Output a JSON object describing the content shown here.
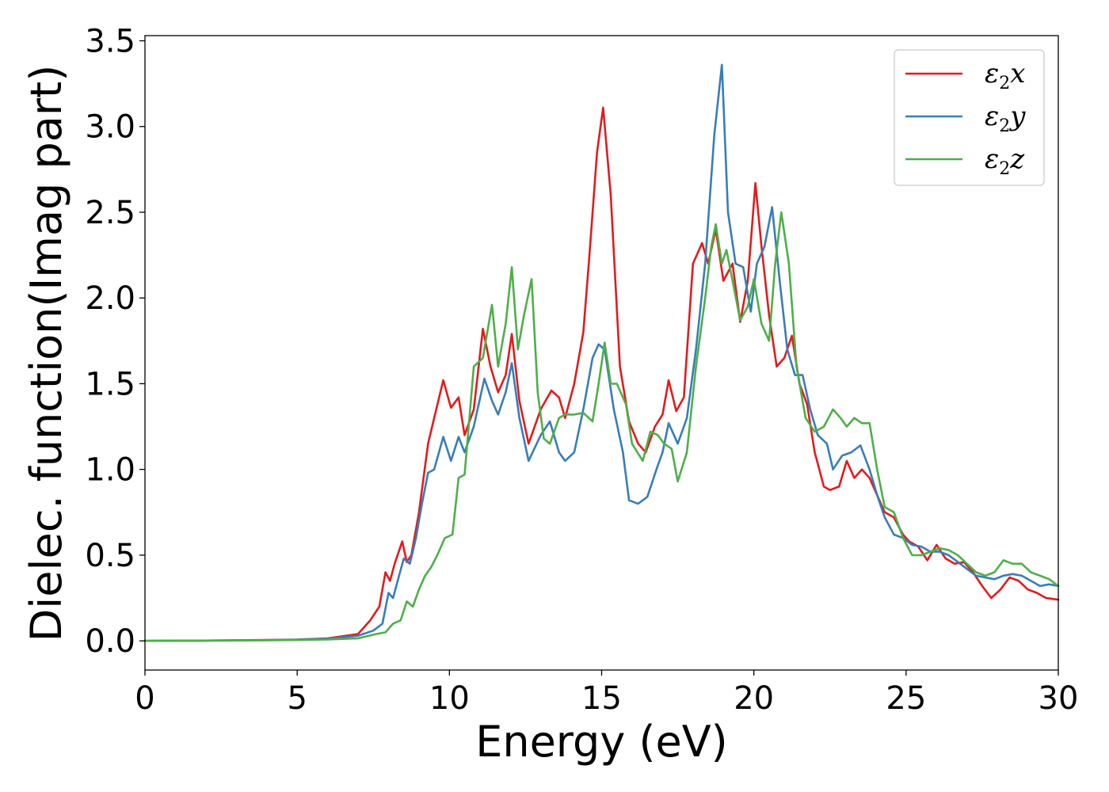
{
  "chart_data": {
    "type": "line",
    "xlabel": "Energy (eV)",
    "ylabel": "Dielec. function(Imag part)",
    "xlim": [
      0,
      30
    ],
    "ylim": [
      -0.17,
      3.53
    ],
    "xticks": [
      0,
      5,
      10,
      15,
      20,
      25,
      30
    ],
    "yticks": [
      0.0,
      0.5,
      1.0,
      1.5,
      2.0,
      2.5,
      3.0,
      3.5
    ],
    "xtick_labels": [
      "0",
      "5",
      "10",
      "15",
      "20",
      "25",
      "30"
    ],
    "ytick_labels": [
      "0.0",
      "0.5",
      "1.0",
      "1.5",
      "2.0",
      "2.5",
      "3.0",
      "3.5"
    ],
    "grid": false,
    "legend_position": "top-right",
    "series": [
      {
        "name": "x",
        "legend_base": "ε",
        "legend_sub": "2",
        "legend_var": "x",
        "color": "#e41a1c",
        "x": [
          0,
          2,
          4,
          5,
          6,
          7,
          7.4,
          7.7,
          7.9,
          8.05,
          8.2,
          8.45,
          8.6,
          8.75,
          9,
          9.3,
          9.5,
          9.8,
          10.05,
          10.3,
          10.5,
          10.8,
          11.1,
          11.35,
          11.6,
          11.85,
          12.05,
          12.3,
          12.6,
          13,
          13.35,
          13.6,
          13.8,
          14.1,
          14.4,
          14.6,
          14.85,
          15.05,
          15.3,
          15.6,
          15.9,
          16.2,
          16.45,
          16.75,
          17,
          17.2,
          17.45,
          17.7,
          18,
          18.3,
          18.5,
          18.75,
          19,
          19.3,
          19.55,
          19.8,
          20.05,
          20.25,
          20.5,
          20.75,
          21,
          21.25,
          21.5,
          21.75,
          22,
          22.3,
          22.5,
          22.8,
          23.05,
          23.3,
          23.55,
          23.8,
          24.05,
          24.3,
          24.6,
          24.9,
          25.1,
          25.4,
          25.7,
          26,
          26.3,
          26.6,
          26.9,
          27.2,
          27.5,
          27.8,
          28.1,
          28.4,
          28.7,
          29,
          29.3,
          29.6,
          30
        ],
        "values": [
          0,
          0.002,
          0.005,
          0.008,
          0.015,
          0.04,
          0.12,
          0.2,
          0.4,
          0.35,
          0.45,
          0.58,
          0.46,
          0.5,
          0.75,
          1.15,
          1.3,
          1.52,
          1.36,
          1.42,
          1.2,
          1.35,
          1.82,
          1.6,
          1.45,
          1.55,
          1.79,
          1.4,
          1.15,
          1.35,
          1.46,
          1.42,
          1.3,
          1.5,
          1.8,
          2.25,
          2.85,
          3.11,
          2.6,
          1.6,
          1.28,
          1.15,
          1.1,
          1.25,
          1.32,
          1.52,
          1.34,
          1.42,
          2.2,
          2.32,
          2.2,
          2.4,
          2.1,
          2.2,
          1.86,
          2.1,
          2.67,
          2.3,
          1.9,
          1.6,
          1.65,
          1.78,
          1.5,
          1.38,
          1.1,
          0.9,
          0.88,
          0.9,
          1.05,
          0.95,
          1.0,
          0.95,
          0.85,
          0.75,
          0.72,
          0.62,
          0.58,
          0.55,
          0.47,
          0.56,
          0.48,
          0.45,
          0.46,
          0.4,
          0.32,
          0.25,
          0.3,
          0.37,
          0.35,
          0.3,
          0.28,
          0.25,
          0.24
        ]
      },
      {
        "name": "y",
        "legend_base": "ε",
        "legend_sub": "2",
        "legend_var": "y",
        "color": "#377eb8",
        "x": [
          0,
          2,
          4,
          5,
          6,
          7,
          7.5,
          7.8,
          8.0,
          8.15,
          8.3,
          8.5,
          8.7,
          8.9,
          9.1,
          9.3,
          9.5,
          9.8,
          10.05,
          10.3,
          10.5,
          10.8,
          11.15,
          11.4,
          11.6,
          11.85,
          12.05,
          12.3,
          12.6,
          13,
          13.3,
          13.6,
          13.8,
          14.1,
          14.4,
          14.7,
          14.9,
          15.1,
          15.4,
          15.7,
          15.9,
          16.2,
          16.5,
          16.8,
          17.0,
          17.2,
          17.5,
          17.8,
          18.1,
          18.4,
          18.7,
          18.95,
          19.15,
          19.4,
          19.65,
          19.9,
          20.1,
          20.35,
          20.6,
          20.85,
          21.1,
          21.35,
          21.6,
          21.85,
          22.1,
          22.4,
          22.6,
          22.9,
          23.2,
          23.5,
          23.8,
          24.05,
          24.3,
          24.6,
          24.9,
          25.2,
          25.5,
          25.8,
          26.1,
          26.4,
          26.7,
          27.0,
          27.3,
          27.6,
          27.9,
          28.2,
          28.5,
          28.8,
          29.1,
          29.4,
          29.7,
          30
        ],
        "values": [
          0,
          0.002,
          0.004,
          0.007,
          0.012,
          0.03,
          0.06,
          0.1,
          0.28,
          0.25,
          0.35,
          0.48,
          0.45,
          0.6,
          0.8,
          0.98,
          1.0,
          1.19,
          1.05,
          1.19,
          1.1,
          1.25,
          1.53,
          1.4,
          1.32,
          1.45,
          1.62,
          1.3,
          1.05,
          1.2,
          1.28,
          1.1,
          1.05,
          1.1,
          1.35,
          1.65,
          1.73,
          1.7,
          1.35,
          1.1,
          0.82,
          0.8,
          0.84,
          1.0,
          1.1,
          1.27,
          1.15,
          1.3,
          1.7,
          2.2,
          2.95,
          3.36,
          2.5,
          2.2,
          2.18,
          1.92,
          2.2,
          2.3,
          2.53,
          2.1,
          1.7,
          1.55,
          1.55,
          1.35,
          1.2,
          1.15,
          1.0,
          1.08,
          1.1,
          1.14,
          1.0,
          0.85,
          0.72,
          0.62,
          0.6,
          0.56,
          0.55,
          0.52,
          0.52,
          0.5,
          0.46,
          0.42,
          0.38,
          0.37,
          0.36,
          0.38,
          0.39,
          0.38,
          0.35,
          0.32,
          0.33,
          0.32
        ]
      },
      {
        "name": "z",
        "legend_base": "ε",
        "legend_sub": "2",
        "legend_var": "z",
        "color": "#4daf4a",
        "x": [
          0,
          2,
          4,
          5,
          6,
          7,
          7.6,
          7.9,
          8.15,
          8.4,
          8.6,
          8.8,
          9.0,
          9.2,
          9.4,
          9.6,
          9.85,
          10.1,
          10.3,
          10.5,
          10.8,
          11.1,
          11.4,
          11.6,
          11.85,
          12.05,
          12.25,
          12.45,
          12.7,
          12.9,
          13.1,
          13.3,
          13.6,
          13.8,
          14.1,
          14.4,
          14.7,
          14.9,
          15.1,
          15.3,
          15.5,
          15.8,
          16.0,
          16.35,
          16.6,
          16.85,
          17.05,
          17.3,
          17.5,
          17.8,
          18.1,
          18.4,
          18.6,
          18.75,
          18.95,
          19.1,
          19.3,
          19.55,
          19.8,
          20.0,
          20.25,
          20.5,
          20.7,
          20.9,
          21.15,
          21.4,
          21.7,
          22.0,
          22.3,
          22.6,
          22.85,
          23.05,
          23.3,
          23.55,
          23.8,
          24.05,
          24.3,
          24.6,
          24.9,
          25.2,
          25.5,
          25.8,
          26.1,
          26.4,
          26.7,
          27.0,
          27.3,
          27.6,
          27.9,
          28.2,
          28.5,
          28.8,
          29.1,
          29.4,
          29.7,
          30
        ],
        "values": [
          0,
          0.001,
          0.003,
          0.005,
          0.008,
          0.015,
          0.04,
          0.05,
          0.1,
          0.12,
          0.23,
          0.2,
          0.3,
          0.38,
          0.43,
          0.5,
          0.6,
          0.62,
          0.95,
          0.97,
          1.6,
          1.65,
          1.96,
          1.6,
          1.85,
          2.18,
          1.7,
          1.9,
          2.11,
          1.45,
          1.18,
          1.15,
          1.3,
          1.32,
          1.32,
          1.33,
          1.28,
          1.5,
          1.74,
          1.5,
          1.5,
          1.38,
          1.15,
          1.05,
          1.22,
          1.2,
          1.15,
          1.12,
          0.93,
          1.1,
          1.6,
          2.0,
          2.3,
          2.43,
          2.2,
          2.28,
          2.1,
          1.87,
          1.95,
          2.11,
          1.85,
          1.75,
          2.2,
          2.5,
          2.2,
          1.6,
          1.3,
          1.22,
          1.25,
          1.35,
          1.3,
          1.25,
          1.3,
          1.27,
          1.27,
          1.0,
          0.78,
          0.75,
          0.6,
          0.5,
          0.5,
          0.52,
          0.54,
          0.53,
          0.5,
          0.45,
          0.4,
          0.38,
          0.4,
          0.47,
          0.45,
          0.45,
          0.4,
          0.38,
          0.36,
          0.32
        ]
      }
    ]
  }
}
